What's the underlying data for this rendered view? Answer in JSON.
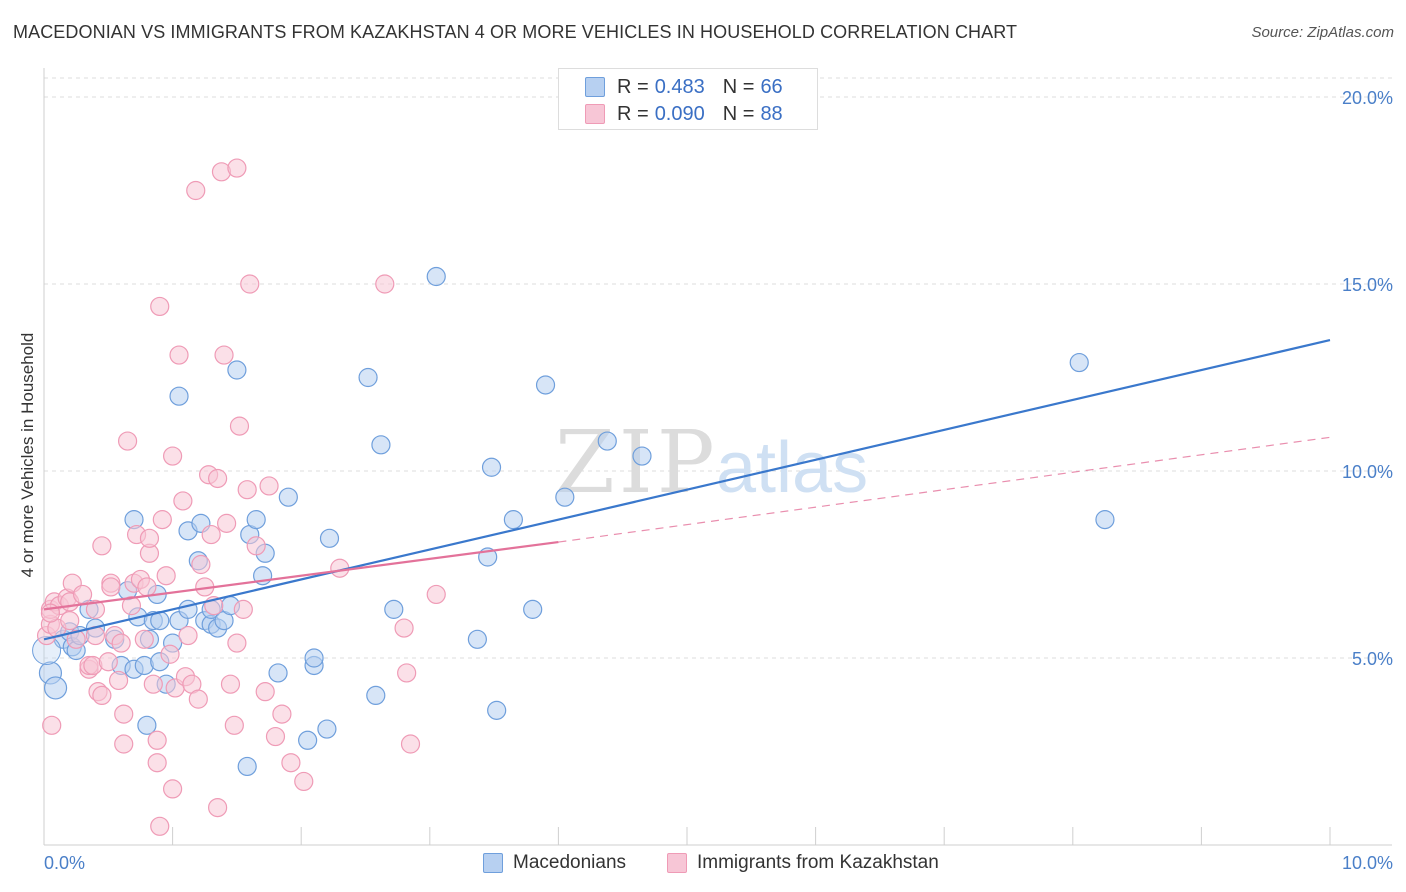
{
  "title": "MACEDONIAN VS IMMIGRANTS FROM KAZAKHSTAN 4 OR MORE VEHICLES IN HOUSEHOLD CORRELATION CHART",
  "source": "Source: ZipAtlas.com",
  "watermark": {
    "zip": "ZIP",
    "atlas": "atlas"
  },
  "legend_top": [
    {
      "r_label": "R =",
      "r_value": "0.483",
      "n_label": "N =",
      "n_value": "66",
      "color": "#a9c6ec"
    },
    {
      "r_label": "R =",
      "r_value": "0.090",
      "n_label": "N =",
      "n_value": "88",
      "color": "#f4b8cb"
    }
  ],
  "chart_data": {
    "type": "scatter",
    "title": "MACEDONIAN VS IMMIGRANTS FROM KAZAKHSTAN 4 OR MORE VEHICLES IN HOUSEHOLD CORRELATION CHART",
    "xlabel": "",
    "ylabel": "4 or more Vehicles in Household",
    "xlim": [
      0,
      10
    ],
    "ylim": [
      0,
      20.5
    ],
    "x_tick_labels": [
      {
        "value": 0,
        "label": "0.0%"
      },
      {
        "value": 10,
        "label": "10.0%"
      }
    ],
    "y_tick_labels": [
      {
        "value": 5,
        "label": "5.0%"
      },
      {
        "value": 10,
        "label": "10.0%"
      },
      {
        "value": 15,
        "label": "15.0%"
      },
      {
        "value": 20,
        "label": "20.0%"
      }
    ],
    "grid": true,
    "legend_position": "bottom",
    "series": [
      {
        "name": "Macedonians",
        "color": "#6f9fdc",
        "fill": "#b7d0f1",
        "trend": {
          "x": [
            0,
            10
          ],
          "y": [
            5.5,
            13.5
          ],
          "color": "#3a78cc"
        },
        "points": [
          [
            0.05,
            4.6
          ],
          [
            0.09,
            4.2
          ],
          [
            0.15,
            5.5
          ],
          [
            0.2,
            5.7
          ],
          [
            0.22,
            5.3
          ],
          [
            0.25,
            5.2
          ],
          [
            0.28,
            5.6
          ],
          [
            0.35,
            6.3
          ],
          [
            0.4,
            5.8
          ],
          [
            0.55,
            5.5
          ],
          [
            0.6,
            4.8
          ],
          [
            0.65,
            6.8
          ],
          [
            0.7,
            8.7
          ],
          [
            0.7,
            4.7
          ],
          [
            0.73,
            6.1
          ],
          [
            0.78,
            4.8
          ],
          [
            0.82,
            5.5
          ],
          [
            0.8,
            3.2
          ],
          [
            0.85,
            6.0
          ],
          [
            0.88,
            6.7
          ],
          [
            0.9,
            6.0
          ],
          [
            0.9,
            4.9
          ],
          [
            0.95,
            4.3
          ],
          [
            1.0,
            5.4
          ],
          [
            1.05,
            6.0
          ],
          [
            1.05,
            12.0
          ],
          [
            1.12,
            6.3
          ],
          [
            1.12,
            8.4
          ],
          [
            1.2,
            7.6
          ],
          [
            1.22,
            8.6
          ],
          [
            1.25,
            6.0
          ],
          [
            1.3,
            5.9
          ],
          [
            1.3,
            6.3
          ],
          [
            1.35,
            5.8
          ],
          [
            1.4,
            6.0
          ],
          [
            1.45,
            6.4
          ],
          [
            1.5,
            12.7
          ],
          [
            1.6,
            8.3
          ],
          [
            1.65,
            8.7
          ],
          [
            1.7,
            7.2
          ],
          [
            1.72,
            7.8
          ],
          [
            1.58,
            2.1
          ],
          [
            1.82,
            4.6
          ],
          [
            1.9,
            9.3
          ],
          [
            2.05,
            2.8
          ],
          [
            2.1,
            4.8
          ],
          [
            2.1,
            5.0
          ],
          [
            2.2,
            3.1
          ],
          [
            2.22,
            8.2
          ],
          [
            2.52,
            12.5
          ],
          [
            2.58,
            4.0
          ],
          [
            2.62,
            10.7
          ],
          [
            2.72,
            6.3
          ],
          [
            3.05,
            15.2
          ],
          [
            3.37,
            5.5
          ],
          [
            3.45,
            7.7
          ],
          [
            3.48,
            10.1
          ],
          [
            3.52,
            3.6
          ],
          [
            3.65,
            8.7
          ],
          [
            3.8,
            6.3
          ],
          [
            3.9,
            12.3
          ],
          [
            4.05,
            9.3
          ],
          [
            4.38,
            10.8
          ],
          [
            4.65,
            10.4
          ],
          [
            8.05,
            12.9
          ],
          [
            8.25,
            8.7
          ]
        ]
      },
      {
        "name": "Immigrants from Kazakhstan",
        "color": "#ef9bb6",
        "fill": "#f7c6d6",
        "trend": {
          "x": [
            0,
            4.0
          ],
          "y": [
            6.3,
            8.1
          ],
          "color": "#e3729a",
          "dashed_extension": {
            "x": [
              4.0,
              10
            ],
            "y": [
              8.1,
              10.9
            ]
          }
        },
        "points": [
          [
            0.02,
            5.6
          ],
          [
            0.05,
            5.9
          ],
          [
            0.05,
            6.3
          ],
          [
            0.06,
            3.2
          ],
          [
            0.08,
            6.5
          ],
          [
            0.1,
            5.8
          ],
          [
            0.12,
            6.4
          ],
          [
            0.18,
            6.6
          ],
          [
            0.2,
            6.5
          ],
          [
            0.2,
            6.0
          ],
          [
            0.22,
            7.0
          ],
          [
            0.25,
            5.5
          ],
          [
            0.3,
            6.7
          ],
          [
            0.35,
            4.7
          ],
          [
            0.35,
            4.8
          ],
          [
            0.38,
            4.8
          ],
          [
            0.4,
            6.3
          ],
          [
            0.4,
            5.6
          ],
          [
            0.42,
            4.1
          ],
          [
            0.45,
            4.0
          ],
          [
            0.45,
            8.0
          ],
          [
            0.5,
            4.9
          ],
          [
            0.52,
            7.0
          ],
          [
            0.52,
            6.9
          ],
          [
            0.55,
            5.6
          ],
          [
            0.58,
            4.4
          ],
          [
            0.6,
            5.4
          ],
          [
            0.62,
            3.5
          ],
          [
            0.65,
            10.8
          ],
          [
            0.68,
            6.4
          ],
          [
            0.7,
            7.0
          ],
          [
            0.72,
            8.3
          ],
          [
            0.75,
            7.1
          ],
          [
            0.78,
            5.5
          ],
          [
            0.8,
            6.9
          ],
          [
            0.82,
            7.8
          ],
          [
            0.82,
            8.2
          ],
          [
            0.85,
            4.3
          ],
          [
            0.88,
            2.8
          ],
          [
            0.9,
            14.4
          ],
          [
            0.92,
            8.7
          ],
          [
            0.95,
            7.2
          ],
          [
            0.98,
            5.1
          ],
          [
            1.0,
            10.4
          ],
          [
            1.02,
            4.2
          ],
          [
            1.05,
            13.1
          ],
          [
            1.08,
            9.2
          ],
          [
            1.1,
            4.5
          ],
          [
            1.12,
            5.6
          ],
          [
            1.15,
            4.3
          ],
          [
            1.18,
            17.5
          ],
          [
            1.2,
            3.9
          ],
          [
            1.22,
            7.5
          ],
          [
            1.25,
            6.9
          ],
          [
            1.28,
            9.9
          ],
          [
            1.3,
            8.3
          ],
          [
            1.32,
            6.4
          ],
          [
            1.35,
            9.8
          ],
          [
            1.35,
            1.0
          ],
          [
            1.38,
            18.0
          ],
          [
            1.4,
            13.1
          ],
          [
            1.42,
            8.6
          ],
          [
            1.45,
            4.3
          ],
          [
            1.48,
            3.2
          ],
          [
            1.5,
            18.1
          ],
          [
            1.52,
            11.2
          ],
          [
            1.55,
            6.3
          ],
          [
            1.58,
            9.5
          ],
          [
            1.6,
            15.0
          ],
          [
            1.65,
            8.0
          ],
          [
            1.72,
            4.1
          ],
          [
            1.75,
            9.6
          ],
          [
            1.8,
            2.9
          ],
          [
            1.85,
            3.5
          ],
          [
            1.92,
            2.2
          ],
          [
            2.02,
            1.7
          ],
          [
            2.3,
            7.4
          ],
          [
            2.65,
            15.0
          ],
          [
            2.8,
            5.8
          ],
          [
            2.82,
            4.6
          ],
          [
            2.85,
            2.7
          ],
          [
            3.05,
            6.7
          ],
          [
            0.05,
            6.2
          ],
          [
            0.62,
            2.7
          ],
          [
            0.88,
            2.2
          ],
          [
            1.0,
            1.5
          ],
          [
            0.9,
            0.5
          ],
          [
            1.5,
            5.4
          ]
        ]
      }
    ]
  },
  "legend_bottom": [
    {
      "label": "Macedonians",
      "color": "#b7d0f1",
      "border": "#6f9fdc"
    },
    {
      "label": "Immigrants from Kazakhstan",
      "color": "#f7c6d6",
      "border": "#ef9bb6"
    }
  ]
}
